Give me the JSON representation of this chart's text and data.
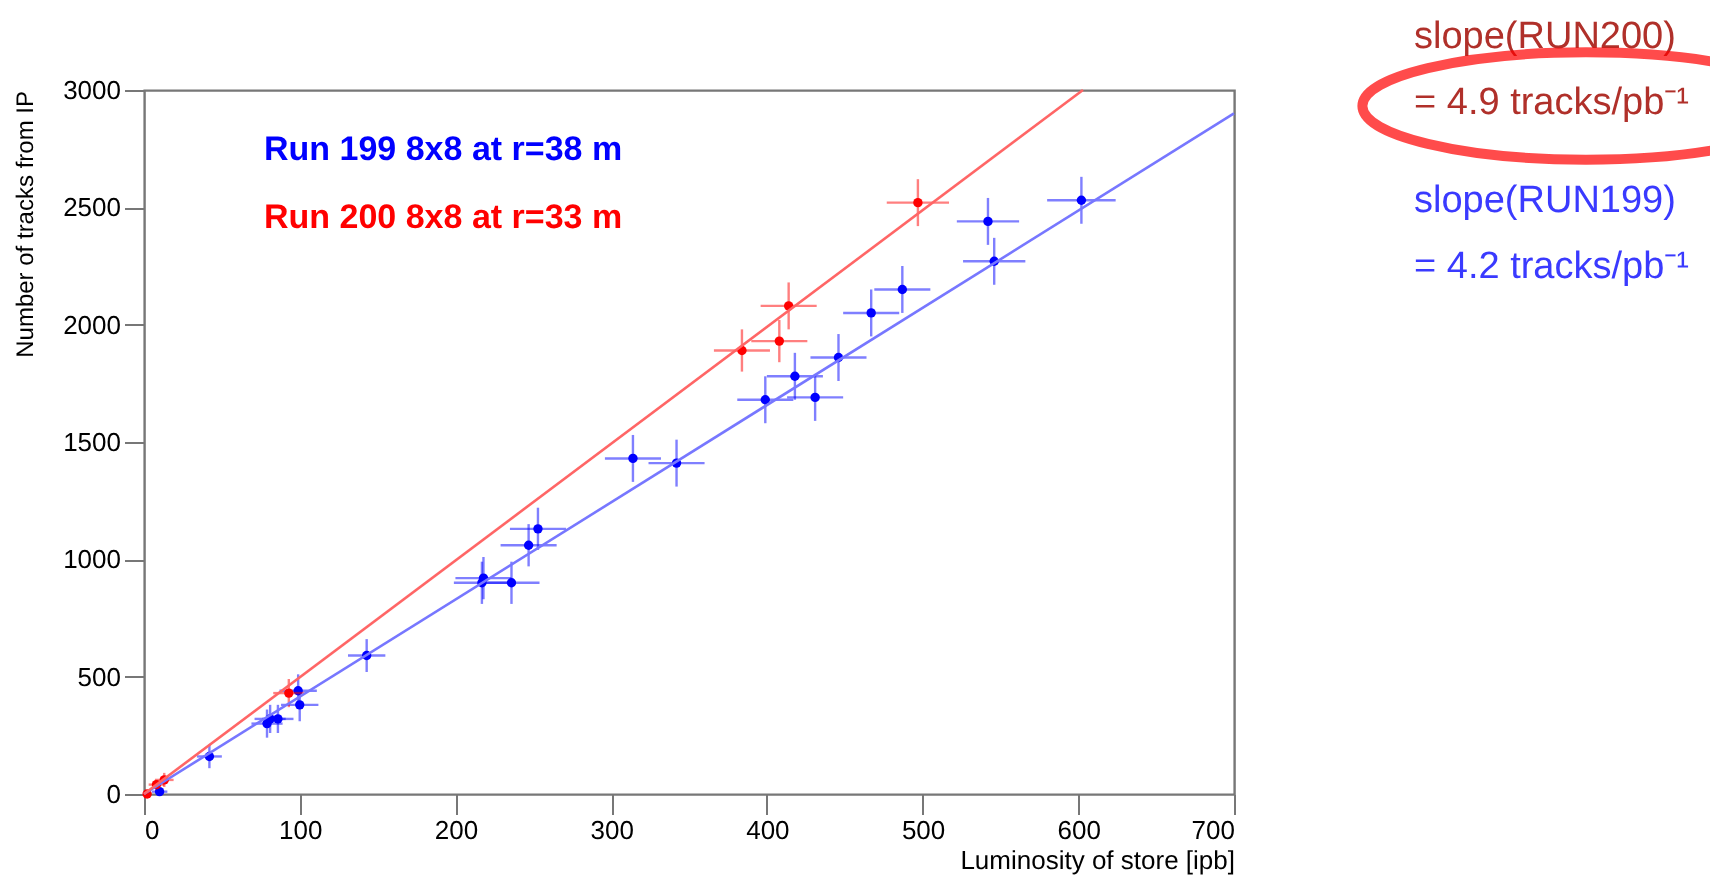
{
  "chart_data": {
    "type": "scatter",
    "xlabel": "Luminosity of store [ipb]",
    "ylabel": "Number of tracks from IP",
    "xlim": [
      0,
      700
    ],
    "ylim": [
      0,
      3000
    ],
    "xticks": [
      0,
      100,
      200,
      300,
      400,
      500,
      600,
      700
    ],
    "yticks": [
      0,
      500,
      1000,
      1500,
      2000,
      2500,
      3000
    ],
    "grid": false,
    "legend": "top left",
    "marker": "circle",
    "series": [
      {
        "name": "Run 199 8x8 at r=38 m",
        "color": "#0000ff",
        "x": [
          10,
          42,
          79,
          81,
          86,
          99,
          100,
          143,
          217,
          218,
          236,
          247,
          253,
          314,
          342,
          399,
          418,
          431,
          446,
          467,
          487,
          542,
          546,
          602
        ],
        "values": [
          10,
          160,
          300,
          320,
          320,
          440,
          380,
          590,
          900,
          920,
          900,
          1060,
          1130,
          1430,
          1410,
          1680,
          1780,
          1690,
          1860,
          2050,
          2150,
          2440,
          2270,
          2530
        ],
        "errors": [
          10,
          50,
          60,
          60,
          60,
          70,
          70,
          70,
          90,
          90,
          90,
          90,
          90,
          100,
          100,
          100,
          100,
          100,
          100,
          100,
          100,
          100,
          100,
          100
        ],
        "xerrors": [
          5,
          8,
          10,
          10,
          10,
          12,
          12,
          12,
          18,
          18,
          18,
          18,
          18,
          18,
          18,
          18,
          18,
          18,
          18,
          18,
          18,
          20,
          20,
          22
        ]
      },
      {
        "name": "Run 200 8x8 at r=33 m",
        "color": "#ff0000",
        "x": [
          2,
          8,
          13,
          93,
          384,
          408,
          414,
          497
        ],
        "values": [
          0,
          40,
          60,
          430,
          1890,
          1930,
          2080,
          2520
        ],
        "errors": [
          null,
          20,
          30,
          60,
          90,
          90,
          100,
          100
        ],
        "xerrors": [
          null,
          5,
          6,
          10,
          18,
          18,
          18,
          20
        ]
      },
      {
        "color": "#7777ff",
        "type": "line",
        "marker": "none",
        "x": [
          0,
          700
        ],
        "values": [
          0,
          2900
        ]
      },
      {
        "color": "#ff6666",
        "type": "line",
        "marker": "none",
        "x": [
          0,
          603
        ],
        "values": [
          0,
          3000
        ]
      }
    ],
    "annotations": [
      "slope(RUN200)",
      "= 4.9 tracks/pb⁻¹",
      "slope(RUN199)",
      "= 4.2 tracks/pb⁻¹"
    ]
  }
}
